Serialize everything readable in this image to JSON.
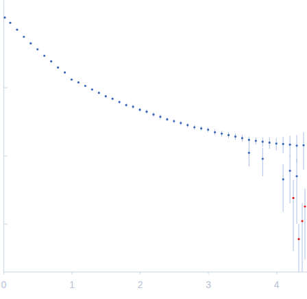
{
  "chart_data": {
    "type": "scatter",
    "log": "y",
    "tick_labels": "x",
    "xlim": [
      0,
      4.45
    ],
    "xticks": [
      0,
      1,
      2,
      3,
      4
    ],
    "ylim": [
      0.0002,
      1.9
    ],
    "yticks": [
      0.001,
      0.01,
      0.1
    ],
    "marker": "circle",
    "series": [
      {
        "color": "#3a66b8",
        "x": [
          0.02,
          0.1,
          0.2,
          0.3,
          0.4,
          0.5,
          0.6,
          0.7,
          0.8,
          0.9,
          1.0,
          1.1,
          1.2,
          1.3,
          1.4,
          1.5,
          1.6,
          1.7,
          1.8,
          1.9,
          2.0,
          2.1,
          2.2,
          2.3,
          2.4,
          2.5,
          2.6,
          2.7,
          2.8,
          2.9,
          3.0,
          3.1,
          3.2,
          3.3,
          3.4,
          3.5,
          3.6,
          3.7,
          3.8,
          3.9,
          4.0,
          4.1,
          4.2,
          4.3,
          4.4,
          3.6,
          3.8,
          4.1,
          4.2,
          4.3
        ],
        "values": [
          1.05,
          0.88,
          0.7,
          0.55,
          0.44,
          0.36,
          0.29,
          0.24,
          0.195,
          0.165,
          0.13,
          0.118,
          0.105,
          0.093,
          0.083,
          0.074,
          0.068,
          0.061,
          0.055,
          0.052,
          0.047,
          0.044,
          0.04,
          0.037,
          0.034,
          0.032,
          0.03,
          0.028,
          0.026,
          0.025,
          0.024,
          0.022,
          0.021,
          0.02,
          0.019,
          0.018,
          0.017,
          0.0165,
          0.016,
          0.0155,
          0.015,
          0.0148,
          0.0145,
          0.014,
          0.0142,
          0.011,
          0.009,
          0.0045,
          0.006,
          0.005
        ],
        "errors": [
          0.02,
          0.01,
          0.008,
          0.006,
          0.005,
          0.004,
          0.003,
          0.003,
          0.003,
          0.003,
          0.003,
          0.003,
          0.003,
          0.003,
          0.003,
          0.003,
          0.003,
          0.003,
          0.003,
          0.003,
          0.003,
          0.003,
          0.003,
          0.003,
          0.002,
          0.002,
          0.002,
          0.002,
          0.002,
          0.002,
          0.002,
          0.002,
          0.002,
          0.002,
          0.002,
          0.002,
          0.002,
          0.002,
          0.0025,
          0.003,
          0.003,
          0.004,
          0.005,
          0.006,
          0.008,
          0.004,
          0.004,
          0.003,
          0.004,
          0.004
        ]
      },
      {
        "color": "#e02020",
        "x": [
          4.25,
          4.33,
          4.38,
          4.42
        ],
        "values": [
          0.0024,
          0.0006,
          0.0011,
          0.0018
        ],
        "errors": [
          0.002,
          0.0004,
          0.0009,
          0.0015
        ]
      }
    ]
  }
}
